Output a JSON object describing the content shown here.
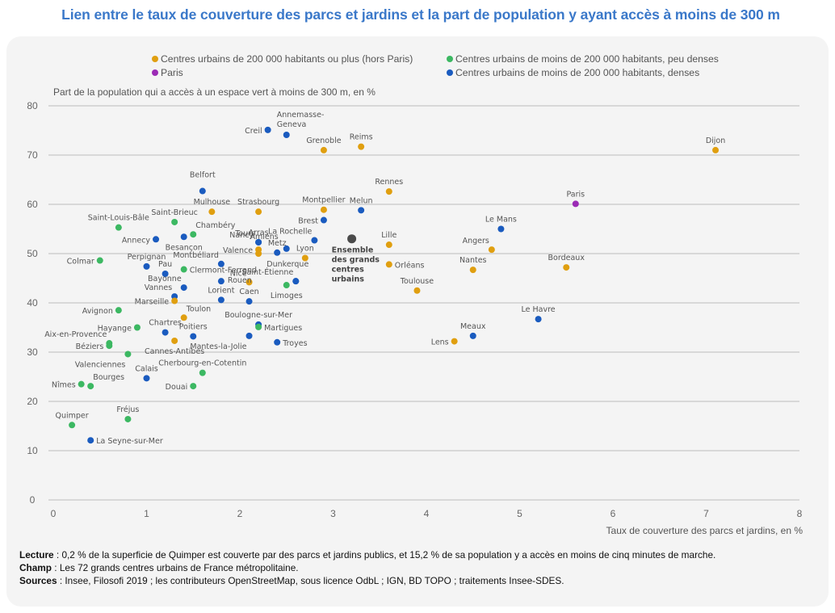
{
  "title": "Lien entre le taux de couverture des parcs et jardins et la part de population y ayant accès à moins de 300 m",
  "colors": {
    "title": "#3a78c9",
    "large": "#e09f10",
    "paris": "#9b2bb5",
    "small_low": "#3cb862",
    "small_dense": "#1a5bbf",
    "overall": "#4a4a4a"
  },
  "legend": [
    {
      "key": "large",
      "label": "Centres urbains de 200 000 habitants ou plus (hors Paris)"
    },
    {
      "key": "small_low",
      "label": "Centres urbains de moins de 200 000 habitants, peu denses"
    },
    {
      "key": "paris",
      "label": "Paris"
    },
    {
      "key": "small_dense",
      "label": "Centres urbains de moins de 200 000 habitants, denses"
    }
  ],
  "notes": {
    "lecture_label": "Lecture",
    "lecture_text": " : 0,2 % de la superficie de Quimper est couverte par des parcs et jardins publics, et 15,2 % de sa population y a accès en moins de cinq minutes de marche.",
    "champ_label": "Champ",
    "champ_text": " : Les 72 grands centres urbains de France métropolitaine.",
    "sources_label": "Sources",
    "sources_text": " : Insee, Filosofi 2019 ; les contributeurs OpenStreetMap, sous licence OdbL ; IGN, BD TOPO ; traitements Insee-SDES."
  },
  "chart_data": {
    "type": "scatter",
    "title": "Lien entre le taux de couverture des parcs et jardins et la part de population y ayant accès à moins de 300 m",
    "xlabel": "Taux de couverture des parcs et jardins, en %",
    "ylabel": "Part de la population qui a accès à un espace vert à moins de 300 m, en %",
    "xlim": [
      0,
      8
    ],
    "ylim": [
      0,
      80
    ],
    "xticks": [
      "0",
      "1",
      "2",
      "3",
      "4",
      "5",
      "6",
      "7",
      "8"
    ],
    "yticks": [
      "0",
      "10",
      "20",
      "30",
      "40",
      "50",
      "60",
      "70",
      "80"
    ],
    "grid": "horizontal",
    "legend_position": "top",
    "points": [
      {
        "name": "Creil",
        "x": 2.3,
        "y": 75.1,
        "cat": "small_dense",
        "lp": "l"
      },
      {
        "name": "Annemasse-Geneva",
        "x": 2.5,
        "y": 74.1,
        "cat": "small_dense",
        "lp": "ml2"
      },
      {
        "name": "Grenoble",
        "x": 2.9,
        "y": 71.0,
        "cat": "large",
        "lp": "t"
      },
      {
        "name": "Reims",
        "x": 3.3,
        "y": 71.7,
        "cat": "large",
        "lp": "t"
      },
      {
        "name": "Dijon",
        "x": 7.1,
        "y": 71.0,
        "cat": "large",
        "lp": "t"
      },
      {
        "name": "Belfort",
        "x": 1.6,
        "y": 62.7,
        "cat": "small_dense",
        "lp": "t2"
      },
      {
        "name": "Mulhouse",
        "x": 1.7,
        "y": 58.5,
        "cat": "large",
        "lp": "t"
      },
      {
        "name": "Strasbourg",
        "x": 2.2,
        "y": 58.5,
        "cat": "large",
        "lp": "t"
      },
      {
        "name": "Montpellier",
        "x": 2.9,
        "y": 58.9,
        "cat": "large",
        "lp": "t"
      },
      {
        "name": "Melun",
        "x": 3.3,
        "y": 58.8,
        "cat": "small_dense",
        "lp": "t"
      },
      {
        "name": "Rennes",
        "x": 3.6,
        "y": 62.6,
        "cat": "large",
        "lp": "t"
      },
      {
        "name": "Paris",
        "x": 5.6,
        "y": 60.1,
        "cat": "paris",
        "lp": "t"
      },
      {
        "name": "Saint-Louis-Bâle",
        "x": 0.7,
        "y": 55.3,
        "cat": "small_low",
        "lp": "t"
      },
      {
        "name": "Saint-Brieuc",
        "x": 1.3,
        "y": 56.4,
        "cat": "small_low",
        "lp": "t"
      },
      {
        "name": "Chambéry",
        "x": 1.5,
        "y": 53.9,
        "cat": "small_low",
        "lp": "tr"
      },
      {
        "name": "Annecy",
        "x": 1.1,
        "y": 52.9,
        "cat": "small_dense",
        "lp": "l"
      },
      {
        "name": "Besançon",
        "x": 1.4,
        "y": 53.4,
        "cat": "small_dense",
        "lp": "b"
      },
      {
        "name": "Brest",
        "x": 2.9,
        "y": 56.8,
        "cat": "small_dense",
        "lp": "l"
      },
      {
        "name": "La Rochelle",
        "x": 2.8,
        "y": 52.7,
        "cat": "small_dense",
        "lp": "tl"
      },
      {
        "name": "Amiens",
        "x": 2.5,
        "y": 51.0,
        "cat": "small_dense",
        "lp": "tl2"
      },
      {
        "name": "Arras",
        "x": 2.2,
        "y": 52.3,
        "cat": "small_dense",
        "lp": "t"
      },
      {
        "name": "Nancy",
        "x": 2.2,
        "y": 52.3,
        "cat": "small_dense",
        "lp": "nancy"
      },
      {
        "name": "Valence",
        "x": 2.2,
        "y": 50.8,
        "cat": "large",
        "lp": "l"
      },
      {
        "name": "Tours",
        "x": 2.2,
        "y": 50.0,
        "cat": "large",
        "lp": "b2"
      },
      {
        "name": "Metz",
        "x": 2.4,
        "y": 50.2,
        "cat": "small_dense",
        "lp": "t"
      },
      {
        "name": "Lyon",
        "x": 2.7,
        "y": 49.1,
        "cat": "large",
        "lp": "t"
      },
      {
        "name": "Lille",
        "x": 3.6,
        "y": 51.8,
        "cat": "large",
        "lp": "t"
      },
      {
        "name": "Le Mans",
        "x": 4.8,
        "y": 55.0,
        "cat": "small_dense",
        "lp": "t"
      },
      {
        "name": "Angers",
        "x": 4.7,
        "y": 50.8,
        "cat": "large",
        "lp": "tl"
      },
      {
        "name": "Colmar",
        "x": 0.5,
        "y": 48.6,
        "cat": "small_low",
        "lp": "l"
      },
      {
        "name": "Perpignan",
        "x": 1.0,
        "y": 47.4,
        "cat": "small_dense",
        "lp": "t"
      },
      {
        "name": "Pau",
        "x": 1.2,
        "y": 45.9,
        "cat": "small_dense",
        "lp": "t"
      },
      {
        "name": "Montbéliard",
        "x": 1.8,
        "y": 47.9,
        "cat": "small_dense",
        "lp": "tl"
      },
      {
        "name": "Clermont-Ferrand",
        "x": 1.4,
        "y": 46.8,
        "cat": "small_low",
        "lp": "r"
      },
      {
        "name": "Bayonne",
        "x": 1.4,
        "y": 43.1,
        "cat": "small_dense",
        "lp": "tl"
      },
      {
        "name": "Rouen",
        "x": 1.8,
        "y": 44.4,
        "cat": "small_dense",
        "lp": "rouen"
      },
      {
        "name": "Nice",
        "x": 2.1,
        "y": 44.2,
        "cat": "large",
        "lp": "tl"
      },
      {
        "name": "Lorient",
        "x": 1.8,
        "y": 40.6,
        "cat": "small_dense",
        "lp": "t"
      },
      {
        "name": "Caen",
        "x": 2.1,
        "y": 40.3,
        "cat": "small_dense",
        "lp": "t"
      },
      {
        "name": "Vannes",
        "x": 1.3,
        "y": 41.3,
        "cat": "small_dense",
        "lp": "tl"
      },
      {
        "name": "Marseille",
        "x": 1.3,
        "y": 40.4,
        "cat": "large",
        "lp": "l"
      },
      {
        "name": "Dunkerque",
        "x": 2.6,
        "y": 44.4,
        "cat": "small_dense",
        "lp": "dunk"
      },
      {
        "name": "Saint-Étienne",
        "x": 2.6,
        "y": 44.4,
        "cat": "small_dense",
        "lp": "tl"
      },
      {
        "name": "Limoges",
        "x": 2.5,
        "y": 43.6,
        "cat": "small_low",
        "lp": "b"
      },
      {
        "name": "Nantes",
        "x": 4.5,
        "y": 46.7,
        "cat": "large",
        "lp": "t"
      },
      {
        "name": "Orléans",
        "x": 3.6,
        "y": 47.8,
        "cat": "large",
        "lp": "r"
      },
      {
        "name": "Bordeaux",
        "x": 5.5,
        "y": 47.2,
        "cat": "large",
        "lp": "t"
      },
      {
        "name": "Toulouse",
        "x": 3.9,
        "y": 42.5,
        "cat": "large",
        "lp": "t"
      },
      {
        "name": "Avignon",
        "x": 0.7,
        "y": 38.5,
        "cat": "small_low",
        "lp": "l"
      },
      {
        "name": "Toulon",
        "x": 1.4,
        "y": 37.0,
        "cat": "large",
        "lp": "tr"
      },
      {
        "name": "Hayange",
        "x": 0.9,
        "y": 35.0,
        "cat": "small_low",
        "lp": "l"
      },
      {
        "name": "Chartres",
        "x": 1.2,
        "y": 34.0,
        "cat": "small_dense",
        "lp": "t"
      },
      {
        "name": "Poitiers",
        "x": 1.5,
        "y": 33.2,
        "cat": "small_dense",
        "lp": "t"
      },
      {
        "name": "Boulogne-sur-Mer",
        "x": 2.2,
        "y": 35.6,
        "cat": "small_dense",
        "lp": "t"
      },
      {
        "name": "Martigues",
        "x": 2.2,
        "y": 35.1,
        "cat": "small_low",
        "lp": "r"
      },
      {
        "name": "Mantes-la-Jolie",
        "x": 2.1,
        "y": 33.3,
        "cat": "small_dense",
        "lp": "bl"
      },
      {
        "name": "Troyes",
        "x": 2.4,
        "y": 32.0,
        "cat": "small_dense",
        "lp": "r"
      },
      {
        "name": "Aix-en-Provence",
        "x": 0.6,
        "y": 31.8,
        "cat": "small_low",
        "lp": "tl"
      },
      {
        "name": "Béziers",
        "x": 0.6,
        "y": 31.3,
        "cat": "small_low",
        "lp": "l"
      },
      {
        "name": "Cannes-Antibes",
        "x": 1.3,
        "y": 32.3,
        "cat": "large",
        "lp": "b"
      },
      {
        "name": "Valenciennes",
        "x": 0.8,
        "y": 29.6,
        "cat": "small_low",
        "lp": "bl"
      },
      {
        "name": "Lens",
        "x": 4.3,
        "y": 32.2,
        "cat": "large",
        "lp": "l"
      },
      {
        "name": "Meaux",
        "x": 4.5,
        "y": 33.3,
        "cat": "small_dense",
        "lp": "t"
      },
      {
        "name": "Le Havre",
        "x": 5.2,
        "y": 36.7,
        "cat": "small_dense",
        "lp": "t"
      },
      {
        "name": "Cherbourg-en-Cotentin",
        "x": 1.6,
        "y": 25.8,
        "cat": "small_low",
        "lp": "t"
      },
      {
        "name": "Calais",
        "x": 1.0,
        "y": 24.7,
        "cat": "small_dense",
        "lp": "t"
      },
      {
        "name": "Nîmes",
        "x": 0.3,
        "y": 23.5,
        "cat": "small_low",
        "lp": "l"
      },
      {
        "name": "Bourges",
        "x": 0.4,
        "y": 23.1,
        "cat": "small_low",
        "lp": "tr"
      },
      {
        "name": "Douai",
        "x": 1.5,
        "y": 23.1,
        "cat": "small_low",
        "lp": "l"
      },
      {
        "name": "Fréjus",
        "x": 0.8,
        "y": 16.4,
        "cat": "small_low",
        "lp": "t"
      },
      {
        "name": "Quimper",
        "x": 0.2,
        "y": 15.2,
        "cat": "small_low",
        "lp": "t"
      },
      {
        "name": "La Seyne-sur-Mer",
        "x": 0.4,
        "y": 12.1,
        "cat": "small_dense",
        "lp": "r"
      }
    ],
    "overall": {
      "name": "Ensemble des grands centres urbains",
      "lines": [
        "Ensemble",
        "des grands",
        "centres",
        "urbains"
      ],
      "x": 3.2,
      "y": 53.0
    }
  }
}
